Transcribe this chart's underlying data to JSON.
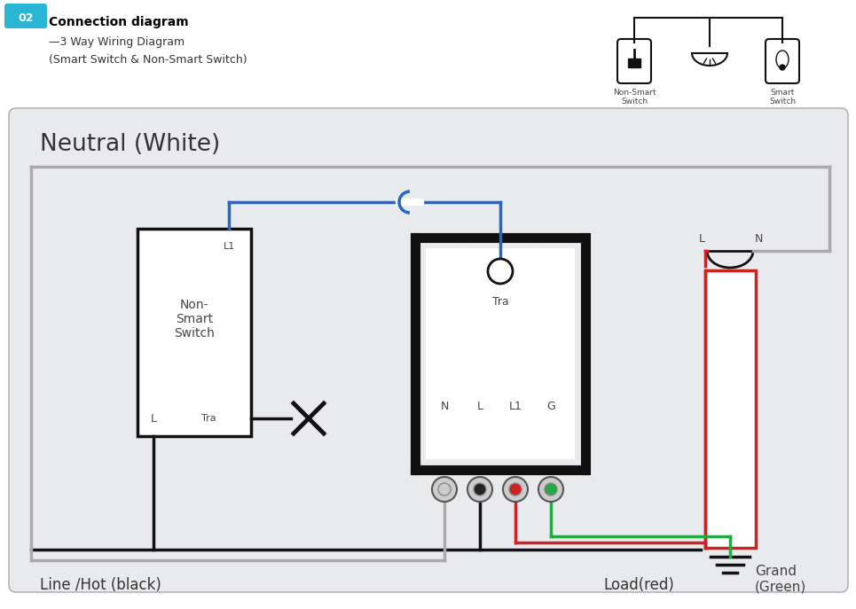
{
  "title": "Connection diagram",
  "subtitle1": "—3 Way Wiring Diagram",
  "subtitle2": "(Smart Switch & Non-Smart Switch)",
  "badge_text": "02",
  "bg_color": "#e8eaed",
  "neutral_label": "Neutral (White)",
  "line_label": "Line /Hot (black)",
  "load_label": "Load(red)",
  "ground_label": "Grand\n(Green)",
  "non_smart_label": "Non-\nSmart\nSwitch",
  "non_smart_sub": "Non-Smart\nSwitch",
  "smart_sub": "Smart\nSwitch",
  "tra_label": "Tra",
  "wire_black": "#111111",
  "wire_blue": "#2266cc",
  "wire_red": "#cc2222",
  "wire_green": "#22aa44",
  "wire_gray": "#aaaaaa",
  "terminal_labels": [
    "N",
    "L",
    "L1",
    "G"
  ]
}
